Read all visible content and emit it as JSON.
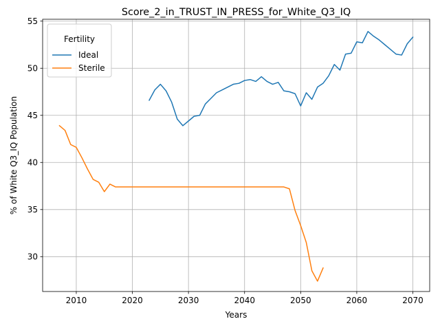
{
  "chart_data": {
    "type": "line",
    "title": "Score_2_in_TRUST_IN_PRESS_for_White_Q3_IQ",
    "xlabel": "Years",
    "ylabel": "% of White Q3_IQ Population",
    "xlim": [
      2004,
      2073
    ],
    "ylim": [
      26.3,
      55.2
    ],
    "xticks": [
      2010,
      2020,
      2030,
      2040,
      2050,
      2060,
      2070
    ],
    "yticks": [
      30,
      35,
      40,
      45,
      50,
      55
    ],
    "grid": true,
    "legend": {
      "title": "Fertility",
      "placement": "top-left"
    },
    "series": [
      {
        "name": "Ideal",
        "color": "#1f77b4",
        "points": [
          [
            2023,
            46.6
          ],
          [
            2024,
            47.7
          ],
          [
            2025,
            48.3
          ],
          [
            2026,
            47.6
          ],
          [
            2027,
            46.4
          ],
          [
            2028,
            44.6
          ],
          [
            2029,
            43.9
          ],
          [
            2030,
            44.4
          ],
          [
            2031,
            44.9
          ],
          [
            2032,
            45.0
          ],
          [
            2033,
            46.2
          ],
          [
            2034,
            46.8
          ],
          [
            2035,
            47.4
          ],
          [
            2036,
            47.7
          ],
          [
            2037,
            48.0
          ],
          [
            2038,
            48.3
          ],
          [
            2039,
            48.4
          ],
          [
            2040,
            48.7
          ],
          [
            2041,
            48.8
          ],
          [
            2042,
            48.6
          ],
          [
            2043,
            49.1
          ],
          [
            2044,
            48.6
          ],
          [
            2045,
            48.3
          ],
          [
            2046,
            48.5
          ],
          [
            2047,
            47.6
          ],
          [
            2048,
            47.5
          ],
          [
            2049,
            47.3
          ],
          [
            2050,
            46.0
          ],
          [
            2051,
            47.4
          ],
          [
            2052,
            46.7
          ],
          [
            2053,
            48.0
          ],
          [
            2054,
            48.4
          ],
          [
            2055,
            49.2
          ],
          [
            2056,
            50.4
          ],
          [
            2057,
            49.8
          ],
          [
            2058,
            51.5
          ],
          [
            2059,
            51.6
          ],
          [
            2060,
            52.8
          ],
          [
            2061,
            52.7
          ],
          [
            2062,
            53.9
          ],
          [
            2063,
            53.4
          ],
          [
            2064,
            53.0
          ],
          [
            2065,
            52.5
          ],
          [
            2066,
            52.0
          ],
          [
            2067,
            51.5
          ],
          [
            2068,
            51.4
          ],
          [
            2069,
            52.6
          ],
          [
            2070,
            53.3
          ]
        ]
      },
      {
        "name": "Sterile",
        "color": "#ff7f0e",
        "points": [
          [
            2007,
            43.9
          ],
          [
            2008,
            43.4
          ],
          [
            2009,
            41.9
          ],
          [
            2010,
            41.6
          ],
          [
            2011,
            40.5
          ],
          [
            2012,
            39.3
          ],
          [
            2013,
            38.2
          ],
          [
            2014,
            37.9
          ],
          [
            2015,
            36.9
          ],
          [
            2016,
            37.7
          ],
          [
            2017,
            37.4
          ],
          [
            2020,
            37.4
          ],
          [
            2025,
            37.4
          ],
          [
            2030,
            37.4
          ],
          [
            2035,
            37.4
          ],
          [
            2040,
            37.4
          ],
          [
            2045,
            37.4
          ],
          [
            2047,
            37.4
          ],
          [
            2048,
            37.2
          ],
          [
            2049,
            34.9
          ],
          [
            2050,
            33.3
          ],
          [
            2051,
            31.5
          ],
          [
            2052,
            28.5
          ],
          [
            2053,
            27.4
          ],
          [
            2054,
            28.8
          ]
        ]
      }
    ]
  }
}
